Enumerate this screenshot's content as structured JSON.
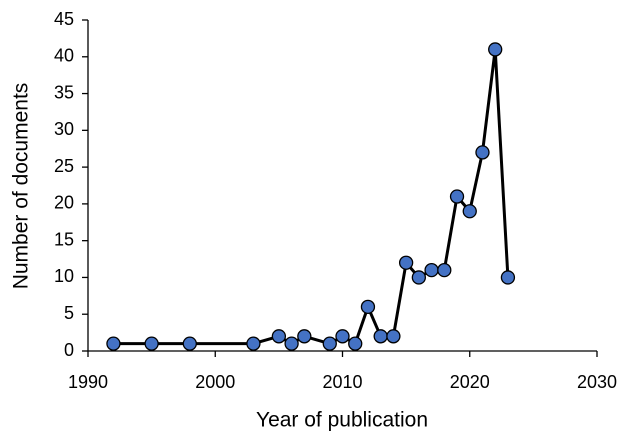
{
  "chart_data": {
    "type": "line",
    "x_label": "Year of publication",
    "y_label": "Number of documents",
    "x": [
      1992,
      1995,
      1998,
      2003,
      2005,
      2006,
      2007,
      2009,
      2010,
      2011,
      2012,
      2013,
      2014,
      2015,
      2016,
      2017,
      2018,
      2019,
      2020,
      2021,
      2022,
      2023
    ],
    "values": [
      1,
      1,
      1,
      1,
      2,
      1,
      2,
      1,
      2,
      1,
      6,
      2,
      2,
      12,
      10,
      11,
      11,
      21,
      19,
      27,
      41,
      10
    ],
    "line_color": "#000000",
    "marker_color": "#4472c4",
    "xlim": [
      1990,
      2030
    ],
    "xticks": [
      1990,
      2000,
      2010,
      2020,
      2030
    ],
    "ylim": [
      0,
      45
    ],
    "yticks": [
      0,
      5,
      10,
      15,
      20,
      25,
      30,
      35,
      40,
      45
    ],
    "grid": false
  }
}
